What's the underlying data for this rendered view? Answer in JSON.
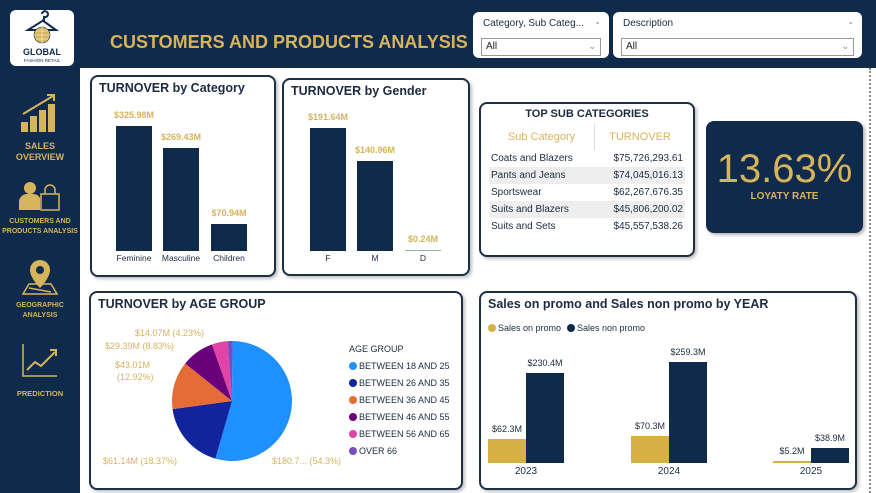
{
  "header": {
    "logo_text": "GLOBAL",
    "logo_sub": "FASHION RETAIL",
    "title": "CUSTOMERS AND PRODUCTS ANALYSIS"
  },
  "slicers": [
    {
      "label": "Category, Sub Categ...",
      "value": "All"
    },
    {
      "label": "Description",
      "value": "All"
    }
  ],
  "nav": [
    {
      "label": "SALES OVERVIEW",
      "icon": "bar-growth-icon"
    },
    {
      "label": "CUSTOMERS AND PRODUCTS ANALYSIS",
      "icon": "customer-bag-icon"
    },
    {
      "label": "GEOGRAPHIC ANALYSIS",
      "icon": "map-pin-icon"
    },
    {
      "label": "PREDICTION",
      "icon": "line-trend-icon"
    }
  ],
  "colors": {
    "navy": "#102a4c",
    "gold": "#d6b45c"
  },
  "table": {
    "title": "TOP SUB CATEGORIES",
    "headers": [
      "Sub Category",
      "TURNOVER"
    ],
    "rows": [
      [
        "Coats and Blazers",
        "$75,726,293.61"
      ],
      [
        "Pants and Jeans",
        "$74,045,016.13"
      ],
      [
        "Sportswear",
        "$62,267,676.35"
      ],
      [
        "Suits and Blazers",
        "$45,806,200.02"
      ],
      [
        "Suits and Sets",
        "$45,557,538.26"
      ]
    ]
  },
  "kpi": {
    "value": "13.63%",
    "label": "LOYATY RATE"
  },
  "chart_data": [
    {
      "type": "bar",
      "title": "TURNOVER by Category",
      "categories": [
        "Feminine",
        "Masculine",
        "Children"
      ],
      "values": [
        325.98,
        269.43,
        70.94
      ],
      "labels": [
        "$325.98M",
        "$269.43M",
        "$70.94M"
      ],
      "unit": "$M"
    },
    {
      "type": "bar",
      "title": "TURNOVER by Gender",
      "categories": [
        "F",
        "M",
        "D"
      ],
      "values": [
        191.64,
        140.96,
        0.24
      ],
      "labels": [
        "$191.64M",
        "$140.96M",
        "$0.24M"
      ],
      "unit": "$M"
    },
    {
      "type": "pie",
      "title": "TURNOVER by AGE GROUP",
      "legend_title": "AGE GROUP",
      "legend_position": "right",
      "slices": [
        {
          "name": "BETWEEN 18 AND 25",
          "value": 180.7,
          "percent": 54.3,
          "label": "$180.7... (54.3%)",
          "color": "#1e90ff"
        },
        {
          "name": "BETWEEN 26 AND 35",
          "value": 61.14,
          "percent": 18.37,
          "label": "$61.14M (18.37%)",
          "color": "#12239e"
        },
        {
          "name": "BETWEEN 36 AND 45",
          "value": 43.01,
          "percent": 12.92,
          "label1": "$43.01M",
          "label2": "(12.92%)",
          "color": "#e66c37"
        },
        {
          "name": "BETWEEN 46 AND 55",
          "value": 29.39,
          "percent": 8.83,
          "label": "$29.39M (8.83%)",
          "color": "#6b007b"
        },
        {
          "name": "BETWEEN 56 AND 65",
          "value": 14.07,
          "percent": 4.23,
          "label": "$14.07M (4.23%)",
          "color": "#e044a7"
        },
        {
          "name": "OVER 66",
          "percent": 1.35,
          "color": "#744ec2"
        }
      ]
    },
    {
      "type": "bar",
      "title": "Sales on promo and Sales non promo by YEAR",
      "categories": [
        "2023",
        "2024",
        "2025"
      ],
      "legend_position": "top-left",
      "series": [
        {
          "name": "Sales on promo",
          "values": [
            62.3,
            70.3,
            5.2
          ],
          "labels": [
            "$62.3M",
            "$70.3M",
            "$5.2M"
          ],
          "color": "#d6b045"
        },
        {
          "name": "Sales non promo",
          "values": [
            230.4,
            259.3,
            38.9
          ],
          "labels": [
            "$230.4M",
            "$259.3M",
            "$38.9M"
          ],
          "color": "#102a4c"
        }
      ]
    }
  ]
}
